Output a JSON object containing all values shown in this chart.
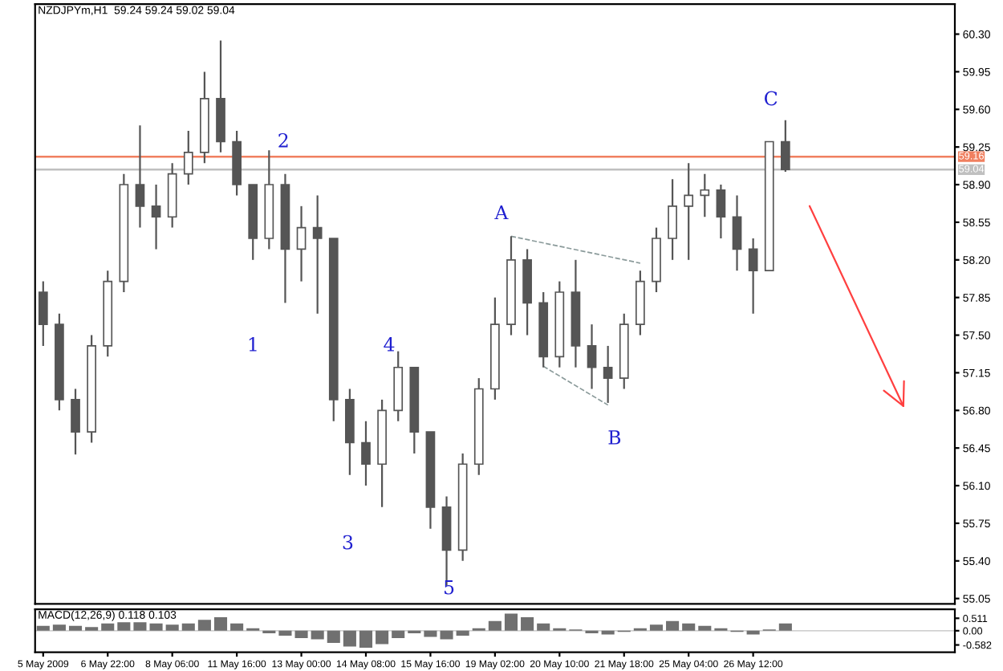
{
  "chart_data": [
    {
      "type": "candlestick",
      "title": "NZDJPYm,H1  59.24 59.24 59.02 59.04",
      "color": "#555555",
      "categories": [
        null,
        null,
        null,
        null,
        null,
        null,
        null,
        null,
        null,
        null,
        null,
        null,
        null,
        null,
        null,
        null,
        null,
        null,
        null,
        null,
        null,
        null,
        null,
        null,
        null,
        null,
        null,
        null,
        null,
        null,
        null,
        null,
        null,
        null,
        null,
        null,
        null,
        null,
        null,
        null,
        null,
        null,
        null,
        null,
        null,
        null,
        null,
        null,
        null,
        null,
        null,
        null,
        null,
        null,
        null,
        null,
        null
      ],
      "ohlc": [
        [
          57.9,
          58.0,
          57.4,
          57.6
        ],
        [
          57.6,
          57.7,
          56.8,
          56.9
        ],
        [
          56.9,
          57.0,
          56.39,
          56.6
        ],
        [
          56.6,
          57.5,
          56.5,
          57.4
        ],
        [
          57.4,
          58.1,
          57.3,
          58.0
        ],
        [
          58.0,
          59.0,
          57.9,
          58.9
        ],
        [
          58.9,
          59.45,
          58.5,
          58.7
        ],
        [
          58.7,
          58.9,
          58.3,
          58.6
        ],
        [
          58.6,
          59.1,
          58.5,
          59.0
        ],
        [
          59.0,
          59.4,
          58.9,
          59.2
        ],
        [
          59.2,
          59.95,
          59.1,
          59.7
        ],
        [
          59.7,
          60.24,
          59.2,
          59.3
        ],
        [
          59.3,
          59.4,
          58.8,
          58.9
        ],
        [
          58.9,
          58.9,
          58.2,
          58.4
        ],
        [
          58.4,
          59.22,
          58.3,
          58.9
        ],
        [
          58.9,
          59.0,
          57.8,
          58.3
        ],
        [
          58.3,
          58.7,
          58.0,
          58.5
        ],
        [
          58.5,
          58.8,
          57.7,
          58.4
        ],
        [
          58.4,
          58.4,
          56.7,
          56.9
        ],
        [
          56.9,
          57.0,
          56.2,
          56.5
        ],
        [
          56.5,
          56.7,
          56.1,
          56.3
        ],
        [
          56.3,
          56.9,
          55.9,
          56.8
        ],
        [
          56.8,
          57.35,
          56.7,
          57.2
        ],
        [
          57.2,
          57.2,
          56.4,
          56.6
        ],
        [
          56.6,
          56.6,
          55.7,
          55.9
        ],
        [
          55.9,
          56.0,
          55.17,
          55.5
        ],
        [
          55.5,
          56.4,
          55.4,
          56.3
        ],
        [
          56.3,
          57.1,
          56.2,
          57.0
        ],
        [
          57.0,
          57.85,
          56.9,
          57.6
        ],
        [
          57.6,
          58.42,
          57.5,
          58.2
        ],
        [
          58.2,
          58.3,
          57.5,
          57.8
        ],
        [
          57.8,
          57.9,
          57.2,
          57.3
        ],
        [
          57.3,
          58.0,
          57.2,
          57.9
        ],
        [
          57.9,
          58.2,
          57.2,
          57.4
        ],
        [
          57.4,
          57.6,
          57.0,
          57.2
        ],
        [
          57.2,
          57.4,
          56.87,
          57.1
        ],
        [
          57.1,
          57.7,
          57.0,
          57.6
        ],
        [
          57.6,
          58.1,
          57.5,
          58.0
        ],
        [
          58.0,
          58.5,
          57.9,
          58.4
        ],
        [
          58.4,
          58.95,
          58.2,
          58.7
        ],
        [
          58.7,
          59.1,
          58.2,
          58.8
        ],
        [
          58.8,
          59.0,
          58.6,
          58.85
        ],
        [
          58.85,
          58.9,
          58.4,
          58.6
        ],
        [
          58.6,
          58.8,
          58.1,
          58.3
        ],
        [
          58.3,
          58.4,
          57.7,
          58.1
        ],
        [
          58.1,
          59.3,
          58.1,
          59.3
        ],
        [
          59.3,
          59.5,
          59.02,
          59.04
        ],
        null,
        null,
        null,
        null,
        null,
        null,
        null,
        null,
        null,
        null
      ],
      "ref_lines": [
        {
          "axis": "y",
          "value": 59.16,
          "label": "59.16",
          "color": "#f08060"
        },
        {
          "axis": "y",
          "value": 59.04,
          "label": "59.04",
          "color": "#c0c0c0"
        }
      ],
      "series": [
        {
          "type": "line",
          "line_style": "dashed",
          "color": "#8a9a9a",
          "values": [
            null,
            null,
            null,
            null,
            null,
            null,
            null,
            null,
            null,
            null,
            null,
            null,
            null,
            null,
            null,
            null,
            null,
            null,
            null,
            null,
            null,
            null,
            null,
            null,
            null,
            null,
            null,
            null,
            null,
            58.42,
            null,
            null,
            null,
            null,
            null,
            null,
            null,
            58.17,
            null,
            null,
            null,
            null,
            null,
            null,
            null,
            null,
            null,
            null,
            null,
            null,
            null,
            null,
            null,
            null,
            null,
            null,
            null
          ]
        },
        {
          "type": "line",
          "line_style": "dashed",
          "color": "#8a9a9a",
          "values": [
            null,
            null,
            null,
            null,
            null,
            null,
            null,
            null,
            null,
            null,
            null,
            null,
            null,
            null,
            null,
            null,
            null,
            null,
            null,
            null,
            null,
            null,
            null,
            null,
            null,
            null,
            null,
            null,
            null,
            null,
            null,
            57.21,
            null,
            null,
            null,
            56.85,
            null,
            null,
            null,
            null,
            null,
            null,
            null,
            null,
            null,
            null,
            null,
            null,
            null,
            null,
            null,
            null,
            null,
            null,
            null,
            null,
            null
          ]
        }
      ],
      "annotations": [
        "1",
        "2",
        "3",
        "4",
        "5",
        "A",
        "B",
        "C"
      ],
      "ylim": [
        55.0,
        60.58
      ],
      "yticks": [
        {
          "value": 55.05,
          "label": "55.05"
        },
        {
          "value": 55.4,
          "label": "55.40"
        },
        {
          "value": 55.75,
          "label": "55.75"
        },
        {
          "value": 56.1,
          "label": "56.10"
        },
        {
          "value": 56.45,
          "label": "56.45"
        },
        {
          "value": 56.8,
          "label": "56.80"
        },
        {
          "value": 57.15,
          "label": "57.15"
        },
        {
          "value": 57.5,
          "label": "57.50"
        },
        {
          "value": 57.85,
          "label": "57.85"
        },
        {
          "value": 58.2,
          "label": "58.20"
        },
        {
          "value": 58.55,
          "label": "58.55"
        },
        {
          "value": 58.9,
          "label": "58.90"
        },
        {
          "value": 59.25,
          "label": "59.25"
        },
        {
          "value": 59.6,
          "label": "59.60"
        },
        {
          "value": 59.95,
          "label": "59.95"
        },
        {
          "value": 60.3,
          "label": "60.30"
        }
      ],
      "tick_labels": "y"
    },
    {
      "type": "bar",
      "title": "MACD(12,26,9) 0.118 0.103",
      "color": "#707070",
      "categories": [
        "5 May 2009",
        null,
        null,
        null,
        "6 May 22:00",
        null,
        null,
        null,
        "8 May 06:00",
        null,
        null,
        null,
        "11 May 16:00",
        null,
        null,
        null,
        "13 May 00:00",
        null,
        null,
        null,
        "14 May 08:00",
        null,
        null,
        null,
        "15 May 16:00",
        null,
        null,
        null,
        "19 May 02:00",
        null,
        null,
        null,
        "20 May 10:00",
        null,
        null,
        null,
        "21 May 18:00",
        null,
        null,
        null,
        "25 May 04:00",
        null,
        null,
        null,
        "26 May 12:00",
        null,
        null,
        null,
        null,
        null,
        null,
        null,
        null,
        null,
        null,
        null,
        null
      ],
      "values": [
        0.2,
        0.25,
        0.2,
        0.15,
        0.3,
        0.35,
        0.35,
        0.3,
        0.25,
        0.3,
        0.45,
        0.55,
        0.3,
        0.1,
        -0.1,
        -0.2,
        -0.3,
        -0.35,
        -0.5,
        -0.65,
        -0.7,
        -0.55,
        -0.3,
        -0.1,
        -0.25,
        -0.35,
        -0.2,
        0.1,
        0.4,
        0.7,
        0.55,
        0.3,
        0.1,
        0.05,
        -0.1,
        -0.15,
        -0.05,
        0.1,
        0.25,
        0.4,
        0.3,
        0.2,
        0.1,
        -0.05,
        -0.15,
        0.05,
        0.3,
        null,
        null,
        null,
        null,
        null,
        null,
        null,
        null,
        null,
        null
      ],
      "ylim": [
        -0.88,
        0.88
      ],
      "yticks": [
        {
          "value": 0.511,
          "label": "0.511"
        },
        {
          "value": 0,
          "label": "0.00"
        },
        {
          "value": -0.582,
          "label": "-0.582"
        }
      ]
    }
  ]
}
